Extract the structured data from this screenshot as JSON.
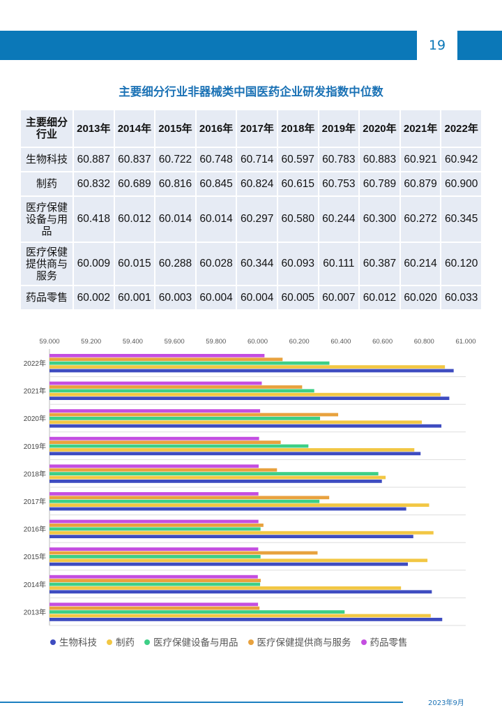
{
  "header": {
    "page_number": "19"
  },
  "title": "主要细分行业非器械类中国医药企业研发指数中位数",
  "table": {
    "header": [
      "主要细分\n行业",
      "2013年",
      "2014年",
      "2015年",
      "2016年",
      "2017年",
      "2018年",
      "2019年",
      "2020年",
      "2021年",
      "2022年"
    ],
    "rows": [
      {
        "name": "生物科技",
        "values": [
          "60.887",
          "60.837",
          "60.722",
          "60.748",
          "60.714",
          "60.597",
          "60.783",
          "60.883",
          "60.921",
          "60.942"
        ]
      },
      {
        "name": "制药",
        "values": [
          "60.832",
          "60.689",
          "60.816",
          "60.845",
          "60.824",
          "60.615",
          "60.753",
          "60.789",
          "60.879",
          "60.900"
        ]
      },
      {
        "name": "医疗保健\n设备与用\n品",
        "values": [
          "60.418",
          "60.012",
          "60.014",
          "60.014",
          "60.297",
          "60.580",
          "60.244",
          "60.300",
          "60.272",
          "60.345"
        ]
      },
      {
        "name": "医疗保健\n提供商与\n服务",
        "values": [
          "60.009",
          "60.015",
          "60.288",
          "60.028",
          "60.344",
          "60.093",
          "60.111",
          "60.387",
          "60.214",
          "60.120"
        ]
      },
      {
        "name": "药品零售",
        "values": [
          "60.002",
          "60.001",
          "60.003",
          "60.004",
          "60.004",
          "60.005",
          "60.007",
          "60.012",
          "60.020",
          "60.033"
        ]
      }
    ]
  },
  "chart_data": {
    "type": "bar",
    "orientation": "horizontal",
    "categories": [
      "2022年",
      "2021年",
      "2020年",
      "2019年",
      "2018年",
      "2017年",
      "2016年",
      "2015年",
      "2014年",
      "2013年"
    ],
    "xlim": [
      59.0,
      61.0
    ],
    "xticks": [
      "59.000",
      "59.200",
      "59.400",
      "59.600",
      "59.800",
      "60.000",
      "60.200",
      "60.400",
      "60.600",
      "60.800",
      "61.000"
    ],
    "grid": "horizontal",
    "legend_position": "bottom",
    "series": [
      {
        "name": "生物科技",
        "color": "#3e4cc0",
        "values": [
          60.942,
          60.921,
          60.883,
          60.783,
          60.597,
          60.714,
          60.748,
          60.722,
          60.837,
          60.887
        ]
      },
      {
        "name": "制药",
        "color": "#f2c744",
        "values": [
          60.9,
          60.879,
          60.789,
          60.753,
          60.615,
          60.824,
          60.845,
          60.816,
          60.689,
          60.832
        ]
      },
      {
        "name": "医疗保健设备与用品",
        "color": "#3dcf86",
        "values": [
          60.345,
          60.272,
          60.3,
          60.244,
          60.58,
          60.297,
          60.014,
          60.014,
          60.012,
          60.418
        ]
      },
      {
        "name": "医疗保健提供商与服务",
        "color": "#e8a23e",
        "values": [
          60.12,
          60.214,
          60.387,
          60.111,
          60.093,
          60.344,
          60.028,
          60.288,
          60.015,
          60.009
        ]
      },
      {
        "name": "药品零售",
        "color": "#c44ee0",
        "values": [
          60.033,
          60.02,
          60.012,
          60.007,
          60.005,
          60.004,
          60.004,
          60.003,
          60.001,
          60.002
        ]
      }
    ]
  },
  "footer": {
    "date": "2023年9月"
  }
}
